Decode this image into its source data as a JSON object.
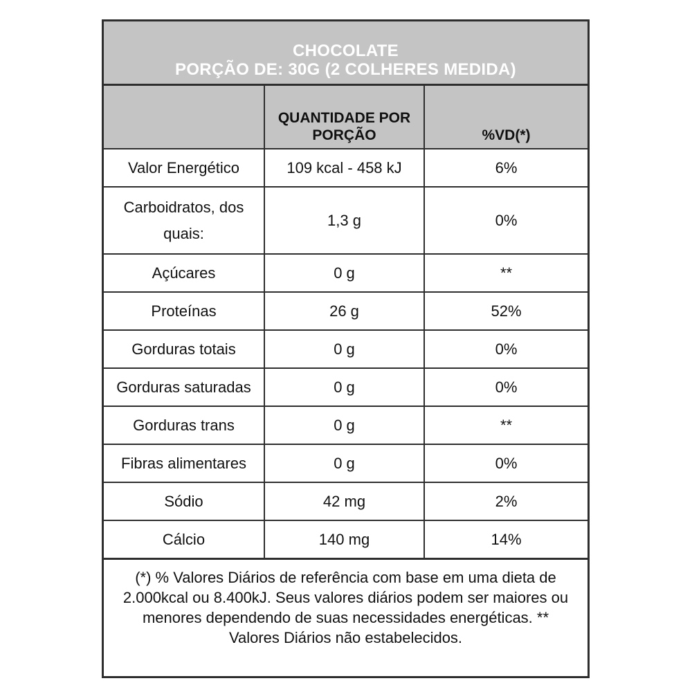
{
  "title": {
    "line1": "CHOCOLATE",
    "line2": "PORÇÃO DE: 30G (2 COLHERES MEDIDA)"
  },
  "header": {
    "quantity_label": "QUANTIDADE POR PORÇÃO",
    "vd_label": "%VD(*)"
  },
  "rows": [
    {
      "label": "Valor Energético",
      "quantity": "109 kcal - 458 kJ",
      "vd": "6%"
    },
    {
      "label": "Carboidratos, dos quais:",
      "quantity": "1,3 g",
      "vd": "0%"
    },
    {
      "label": "Açúcares",
      "quantity": "0 g",
      "vd": "**"
    },
    {
      "label": "Proteínas",
      "quantity": "26 g",
      "vd": "52%"
    },
    {
      "label": "Gorduras totais",
      "quantity": "0 g",
      "vd": "0%"
    },
    {
      "label": "Gorduras saturadas",
      "quantity": "0 g",
      "vd": "0%"
    },
    {
      "label": "Gorduras trans",
      "quantity": "0 g",
      "vd": "**"
    },
    {
      "label": "Fibras alimentares",
      "quantity": "0 g",
      "vd": "0%"
    },
    {
      "label": "Sódio",
      "quantity": "42 mg",
      "vd": "2%"
    },
    {
      "label": "Cálcio",
      "quantity": "140 mg",
      "vd": "14%"
    }
  ],
  "footnote": "(*) % Valores Diários de referência com base em uma dieta de 2.000kcal ou 8.400kJ. Seus valores diários podem ser maiores ou menores dependendo de suas necessidades energéticas. ** Valores Diários não estabelecidos.",
  "colors": {
    "header_bg": "#c4c4c4",
    "border": "#2e2e2e",
    "title_text": "#ffffff",
    "body_text": "#101010"
  }
}
